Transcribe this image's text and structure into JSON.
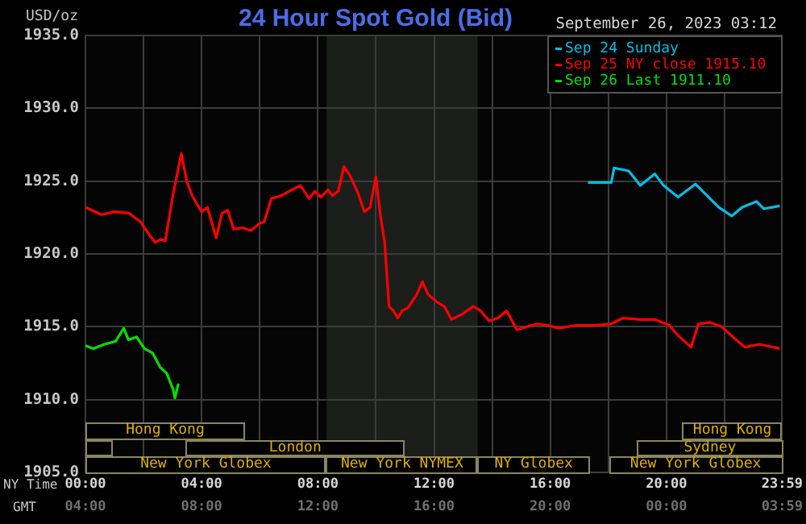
{
  "chart_data": {
    "type": "line",
    "title": "24 Hour Spot Gold (Bid)",
    "subtitle": "September 26, 2023 03:12",
    "ylabel": "USD/oz",
    "xlabel": "NY Time",
    "x2label": "GMT",
    "xlim": [
      0,
      24
    ],
    "xticks": [
      {
        "value": 0,
        "label": "00:00"
      },
      {
        "value": 2,
        "label": null
      },
      {
        "value": 4,
        "label": "04:00"
      },
      {
        "value": 6,
        "label": null
      },
      {
        "value": 8,
        "label": "08:00"
      },
      {
        "value": 10,
        "label": null
      },
      {
        "value": 12,
        "label": "12:00"
      },
      {
        "value": 14,
        "label": null
      },
      {
        "value": 16,
        "label": "16:00"
      },
      {
        "value": 18,
        "label": null
      },
      {
        "value": 20,
        "label": "20:00"
      },
      {
        "value": 22,
        "label": null
      },
      {
        "value": 23.983,
        "label": "23:59"
      }
    ],
    "x2lim": [
      "2023-09-26T04:00",
      "2023-09-27T04:00"
    ],
    "x2ticks": [
      {
        "value": "2023-09-26T04:00",
        "label": "04:00"
      },
      {
        "value": "2023-09-26T08:00",
        "label": "08:00"
      },
      {
        "value": "2023-09-26T12:00",
        "label": "12:00"
      },
      {
        "value": "2023-09-26T16:00",
        "label": "16:00"
      },
      {
        "value": "2023-09-26T20:00",
        "label": "20:00"
      },
      {
        "value": "2023-09-27T00:00",
        "label": "00:00"
      },
      {
        "value": "2023-09-27T03:59",
        "label": "03:59"
      }
    ],
    "ylim": [
      1905,
      1935
    ],
    "yticks": [
      {
        "value": 1905,
        "label": "1905.0"
      },
      {
        "value": 1910,
        "label": "1910.0"
      },
      {
        "value": 1915,
        "label": "1915.0"
      },
      {
        "value": 1920,
        "label": "1920.0"
      },
      {
        "value": 1925,
        "label": "1925.0"
      },
      {
        "value": 1930,
        "label": "1930.0"
      },
      {
        "value": 1935,
        "label": "1935.0"
      }
    ],
    "grid": true,
    "legend": "top right",
    "marker": "none",
    "bands": [
      {
        "axis": "x",
        "from": 8.3,
        "to": 13.5,
        "color": "#1b1e1b"
      }
    ],
    "annotations": [
      "Hong Kong",
      "Hong Kong",
      "London",
      "Sydney",
      "New York Globex",
      "New York NYMEX",
      "NY Globex",
      "New York Globex"
    ],
    "series": [
      {
        "name": "Sep 24 Sunday",
        "color": "#00c0e8",
        "x": [
          17.3,
          18.1,
          18.2,
          18.7,
          19.1,
          19.6,
          19.9,
          20.4,
          21.0,
          21.3,
          21.8,
          22.25,
          22.6,
          23.1,
          23.35,
          23.9
        ],
        "values": [
          1924.9,
          1924.9,
          1925.9,
          1925.7,
          1924.7,
          1925.5,
          1924.7,
          1923.9,
          1924.8,
          1924.2,
          1923.2,
          1922.6,
          1923.2,
          1923.6,
          1923.1,
          1923.3
        ]
      },
      {
        "name": "Sep 25 NY close 1915.10",
        "color": "#ff0000",
        "x": [
          0,
          0.55,
          1.0,
          1.5,
          1.9,
          2.2,
          2.4,
          2.6,
          2.75,
          3.0,
          3.3,
          3.5,
          3.7,
          4.0,
          4.2,
          4.4,
          4.5,
          4.7,
          4.9,
          5.1,
          5.4,
          5.7,
          6.0,
          6.15,
          6.4,
          6.75,
          7.1,
          7.4,
          7.7,
          7.9,
          8.1,
          8.35,
          8.5,
          8.7,
          8.9,
          9.1,
          9.4,
          9.6,
          9.8,
          10.0,
          10.15,
          10.3,
          10.45,
          10.6,
          10.75,
          10.9,
          11.1,
          11.4,
          11.6,
          11.8,
          12.1,
          12.35,
          12.6,
          13.0,
          13.35,
          13.6,
          13.9,
          14.2,
          14.5,
          14.85,
          15.2,
          15.55,
          15.9,
          16.3,
          16.9,
          17.5,
          18.1,
          18.5,
          19.1,
          19.6,
          20.1,
          20.4,
          20.85,
          21.1,
          21.5,
          21.9,
          22.4,
          22.7,
          23.2,
          23.9
        ],
        "values": [
          1923.2,
          1922.7,
          1922.9,
          1922.8,
          1922.2,
          1921.3,
          1920.8,
          1921.0,
          1920.9,
          1923.9,
          1926.9,
          1924.9,
          1923.9,
          1922.9,
          1923.2,
          1921.8,
          1921.1,
          1922.8,
          1923.0,
          1921.7,
          1921.8,
          1921.6,
          1922.1,
          1922.2,
          1923.8,
          1924.0,
          1924.4,
          1924.7,
          1923.8,
          1924.3,
          1923.9,
          1924.4,
          1924.0,
          1924.3,
          1926.0,
          1925.4,
          1924.1,
          1922.9,
          1923.2,
          1925.3,
          1922.7,
          1920.8,
          1916.4,
          1916.1,
          1915.6,
          1916.1,
          1916.3,
          1917.2,
          1918.1,
          1917.2,
          1916.7,
          1916.4,
          1915.5,
          1915.9,
          1916.4,
          1916.1,
          1915.4,
          1915.6,
          1916.1,
          1914.8,
          1915.0,
          1915.2,
          1915.1,
          1914.9,
          1915.1,
          1915.1,
          1915.2,
          1915.6,
          1915.5,
          1915.5,
          1915.1,
          1914.4,
          1913.6,
          1915.2,
          1915.3,
          1915.0,
          1914.1,
          1913.6,
          1913.8,
          1913.5
        ]
      },
      {
        "name": "Sep 26 Last 1911.10",
        "color": "#00e000",
        "x": [
          0,
          0.27,
          0.66,
          1.04,
          1.32,
          1.48,
          1.76,
          2.03,
          2.31,
          2.58,
          2.8,
          3.02,
          3.08,
          3.2
        ],
        "values": [
          1913.7,
          1913.5,
          1913.8,
          1914.0,
          1914.9,
          1914.1,
          1914.3,
          1913.5,
          1913.2,
          1912.2,
          1911.8,
          1910.7,
          1910.1,
          1911.1
        ]
      }
    ]
  }
}
